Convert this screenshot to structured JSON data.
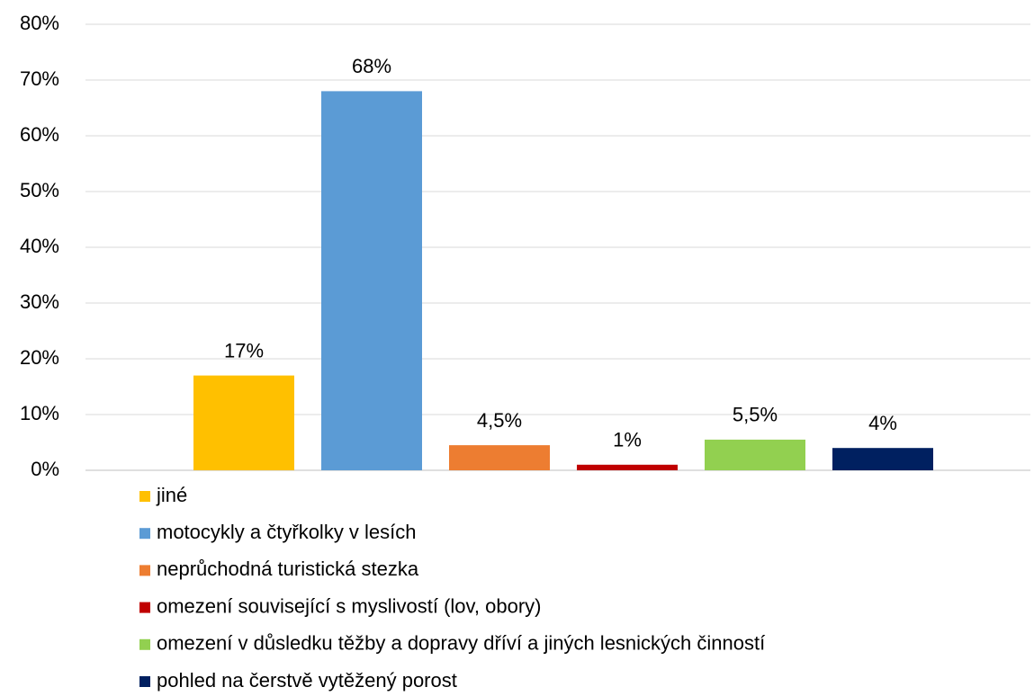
{
  "chart_data": {
    "type": "bar",
    "series": [
      {
        "name": "jiné",
        "color": "#ffc000",
        "values": [
          17
        ],
        "value_labels": [
          "17%"
        ]
      },
      {
        "name": "motocykly a čtyřkolky v lesích",
        "color": "#5b9bd5",
        "values": [
          68
        ],
        "value_labels": [
          "68%"
        ]
      },
      {
        "name": "neprůchodná turistická stezka",
        "color": "#ed7d31",
        "values": [
          4.5
        ],
        "value_labels": [
          "4,5%"
        ]
      },
      {
        "name": "omezení související s myslivostí (lov, obory)",
        "color": "#c00000",
        "values": [
          1
        ],
        "value_labels": [
          "1%"
        ]
      },
      {
        "name": "omezení v důsledku těžby a dopravy dříví a jiných lesnických činností",
        "color": "#92d050",
        "values": [
          5.5
        ],
        "value_labels": [
          "5,5%"
        ]
      },
      {
        "name": "pohled na čerstvě vytěžený porost",
        "color": "#002060",
        "values": [
          4
        ],
        "value_labels": [
          "4%"
        ]
      }
    ],
    "ylim": [
      0,
      80
    ],
    "yticks": [
      {
        "value": 0,
        "label": "0%"
      },
      {
        "value": 10,
        "label": "10%"
      },
      {
        "value": 20,
        "label": "20%"
      },
      {
        "value": 30,
        "label": "30%"
      },
      {
        "value": 40,
        "label": "40%"
      },
      {
        "value": 50,
        "label": "50%"
      },
      {
        "value": 60,
        "label": "60%"
      },
      {
        "value": 70,
        "label": "70%"
      },
      {
        "value": 80,
        "label": "80%"
      }
    ],
    "grid": true,
    "legend": "bottom"
  }
}
